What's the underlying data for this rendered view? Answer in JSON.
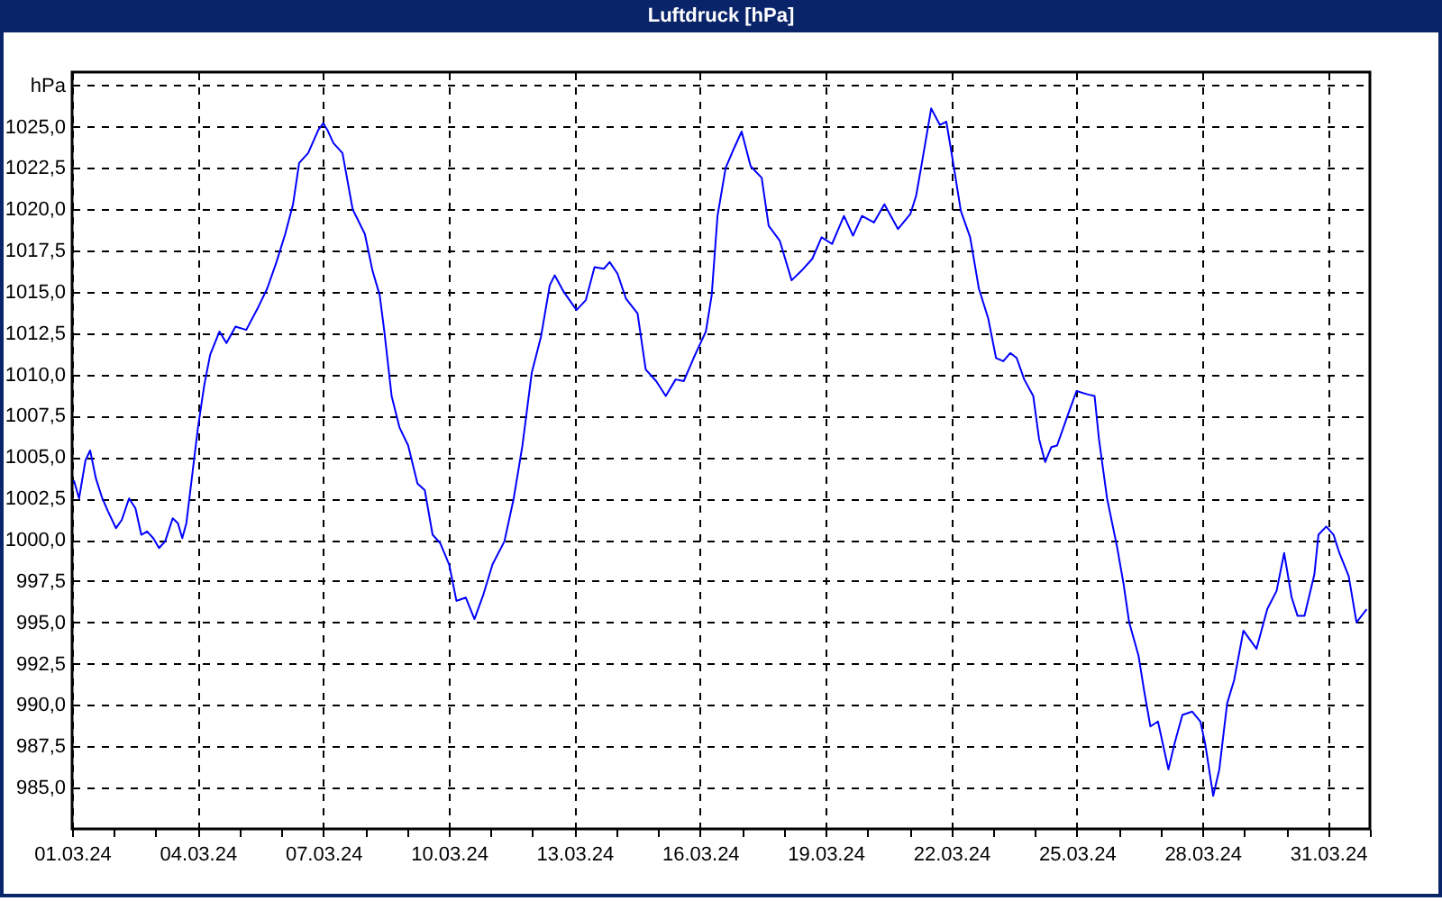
{
  "chart_data": {
    "type": "line",
    "title": "Luftdruck [hPa]",
    "x": [
      "--03-01T01:00",
      "--03-01T04:00",
      "--03-01T07:40",
      "--03-01T10:20",
      "--03-01T13:40",
      "--03-01T17:20",
      "--03-01T20:40",
      "--03-02T01:10",
      "--03-02T04:30",
      "--03-02T08:40",
      "--03-02T12:20",
      "--03-02T15:40",
      "--03-02T19:00",
      "--03-02T22:30",
      "--03-03T01:50",
      "--03-03T05:20",
      "--03-03T09:40",
      "--03-03T12:40",
      "--03-03T15:10",
      "--03-03T17:30",
      "--03-03T20:50",
      "--03-04T00:10",
      "--03-04T03:50",
      "--03-04T07:10",
      "--03-04T12:30",
      "--03-04T16:30",
      "--03-04T21:40",
      "--03-05T03:50",
      "--03-05T10:50",
      "--03-05T15:50",
      "--03-05T21:10",
      "--03-06T02:10",
      "--03-06T06:40",
      "--03-06T10:10",
      "--03-06T15:20",
      "--03-06T21:10",
      "--03-07T00:00",
      "--03-07T02:20",
      "--03-07T05:50",
      "--03-07T11:00",
      "--03-07T16:50",
      "--03-07T23:50",
      "--03-08T04:10",
      "--03-08T08:20",
      "--03-08T11:00",
      "--03-08T15:10",
      "--03-08T19:40",
      "--03-09T00:40",
      "--03-09T06:00",
      "--03-09T10:10",
      "--03-09T14:40",
      "--03-09T19:00",
      "--03-10T00:10",
      "--03-10T04:20",
      "--03-10T09:40",
      "--03-10T14:40",
      "--03-10T19:50",
      "--03-11T01:00",
      "--03-11T07:50",
      "--03-11T13:10",
      "--03-11T18:10",
      "--03-11T23:30",
      "--03-12T04:50",
      "--03-12T09:50",
      "--03-12T12:40",
      "--03-12T17:50",
      "--03-13T01:10",
      "--03-13T06:30",
      "--03-13T11:30",
      "--03-13T16:50",
      "--03-13T20:10",
      "--03-14T00:40",
      "--03-14T05:30",
      "--03-14T12:10",
      "--03-14T16:50",
      "--03-14T22:50",
      "--03-15T04:20",
      "--03-15T10:00",
      "--03-15T14:40",
      "--03-15T20:20",
      "--03-16T03:20",
      "--03-16T06:40",
      "--03-16T10:00",
      "--03-16T14:40",
      "--03-16T18:40",
      "--03-16T23:50",
      "--03-17T05:00",
      "--03-17T11:20",
      "--03-17T15:20",
      "--03-17T21:40",
      "--03-18T04:30",
      "--03-18T10:20",
      "--03-18T16:20",
      "--03-18T21:40",
      "--03-19T03:40",
      "--03-19T10:30",
      "--03-19T15:40",
      "--03-19T20:50",
      "--03-20T03:40",
      "--03-20T09:40",
      "--03-20T17:30",
      "--03-21T00:30",
      "--03-21T03:50",
      "--03-21T07:10",
      "--03-21T12:30",
      "--03-21T17:30",
      "--03-21T21:10",
      "--03-22T00:30",
      "--03-22T05:30",
      "--03-22T10:50",
      "--03-22T15:50",
      "--03-22T21:10",
      "--03-23T01:40",
      "--03-23T05:50",
      "--03-23T09:50",
      "--03-23T13:30",
      "--03-23T17:50",
      "--03-23T23:00",
      "--03-24T02:20",
      "--03-24T05:50",
      "--03-24T09:20",
      "--03-24T12:40",
      "--03-24T19:00",
      "--03-24T23:50",
      "--03-25T06:00",
      "--03-25T10:10",
      "--03-25T12:40",
      "--03-25T17:20",
      "--03-25T23:00",
      "--03-26T02:40",
      "--03-26T06:00",
      "--03-26T11:20",
      "--03-26T14:40",
      "--03-26T18:10",
      "--03-26T22:30",
      "--03-27T04:30",
      "--03-27T07:50",
      "--03-27T12:30",
      "--03-27T18:10",
      "--03-27T22:50",
      "--03-28T01:40",
      "--03-28T06:10",
      "--03-28T09:40",
      "--03-28T14:10",
      "--03-28T18:10",
      "--03-28T23:30",
      "--03-29T07:00",
      "--03-29T13:10",
      "--03-29T18:30",
      "--03-29T22:50",
      "--03-30T03:10",
      "--03-30T06:30",
      "--03-30T10:30",
      "--03-30T16:10",
      "--03-30T18:30",
      "--03-30T23:00",
      "--03-31T03:10",
      "--03-31T06:30",
      "--03-31T11:50",
      "--03-31T16:20",
      "--03-31T22:10"
    ],
    "series": [
      {
        "color": "#0000ff",
        "values": [
          1003.6,
          1002.5,
          1004.8,
          1005.4,
          1003.7,
          1002.5,
          1001.7,
          1000.7,
          1001.2,
          1002.5,
          1001.9,
          1000.3,
          1000.5,
          1000.1,
          999.5,
          999.9,
          1001.3,
          1001.0,
          1000.1,
          1001.0,
          1003.9,
          1006.8,
          1009.4,
          1011.2,
          1012.6,
          1011.9,
          1012.9,
          1012.7,
          1014.1,
          1015.2,
          1016.8,
          1018.5,
          1020.3,
          1022.8,
          1023.4,
          1024.8,
          1025.2,
          1024.8,
          1024.0,
          1023.4,
          1020.0,
          1018.5,
          1016.3,
          1014.8,
          1012.6,
          1008.7,
          1006.8,
          1005.7,
          1003.4,
          1003.0,
          1000.3,
          999.8,
          998.5,
          996.3,
          996.5,
          995.2,
          996.7,
          998.5,
          999.9,
          1002.5,
          1005.7,
          1010.1,
          1012.3,
          1015.4,
          1016.0,
          1015.0,
          1013.9,
          1014.5,
          1016.5,
          1016.4,
          1016.8,
          1016.1,
          1014.6,
          1013.7,
          1010.3,
          1009.6,
          1008.7,
          1009.7,
          1009.6,
          1011.0,
          1012.6,
          1014.8,
          1019.6,
          1022.5,
          1023.5,
          1024.7,
          1022.6,
          1021.9,
          1019.0,
          1018.1,
          1015.7,
          1016.3,
          1017.0,
          1018.3,
          1017.9,
          1019.6,
          1018.4,
          1019.6,
          1019.2,
          1020.3,
          1018.8,
          1019.7,
          1020.8,
          1022.8,
          1026.1,
          1025.1,
          1025.3,
          1023.2,
          1019.9,
          1018.3,
          1015.2,
          1013.4,
          1011.0,
          1010.8,
          1011.3,
          1011.0,
          1009.7,
          1008.7,
          1006.1,
          1004.7,
          1005.6,
          1005.7,
          1007.6,
          1009.0,
          1008.8,
          1008.7,
          1006.1,
          1002.5,
          999.6,
          997.4,
          995.0,
          993.0,
          990.8,
          988.7,
          989.0,
          986.1,
          987.6,
          989.4,
          989.6,
          989.0,
          987.6,
          984.5,
          986.1,
          990.1,
          991.5,
          994.5,
          993.4,
          995.8,
          996.9,
          999.2,
          996.5,
          995.4,
          995.4,
          997.9,
          1000.3,
          1000.8,
          1000.3,
          999.2,
          997.8,
          995.0,
          995.8
        ]
      }
    ],
    "xlim": [
      "--03-01",
      "--04-01"
    ],
    "xticks": [
      {
        "value": "--03-01",
        "label": "01.03.24"
      },
      {
        "value": "--03-02",
        "label": null
      },
      {
        "value": "--03-03",
        "label": null
      },
      {
        "value": "--03-04",
        "label": "04.03.24"
      },
      {
        "value": "--03-05",
        "label": null
      },
      {
        "value": "--03-06",
        "label": null
      },
      {
        "value": "--03-07",
        "label": "07.03.24"
      },
      {
        "value": "--03-08",
        "label": null
      },
      {
        "value": "--03-09",
        "label": null
      },
      {
        "value": "--03-10",
        "label": "10.03.24"
      },
      {
        "value": "--03-11",
        "label": null
      },
      {
        "value": "--03-12",
        "label": null
      },
      {
        "value": "--03-13",
        "label": "13.03.24"
      },
      {
        "value": "--03-14",
        "label": null
      },
      {
        "value": "--03-15",
        "label": null
      },
      {
        "value": "--03-16",
        "label": "16.03.24"
      },
      {
        "value": "--03-17",
        "label": null
      },
      {
        "value": "--03-18",
        "label": null
      },
      {
        "value": "--03-19",
        "label": "19.03.24"
      },
      {
        "value": "--03-20",
        "label": null
      },
      {
        "value": "--03-21",
        "label": null
      },
      {
        "value": "--03-22",
        "label": "22.03.24"
      },
      {
        "value": "--03-23",
        "label": null
      },
      {
        "value": "--03-24",
        "label": null
      },
      {
        "value": "--03-25",
        "label": "25.03.24"
      },
      {
        "value": "--03-26",
        "label": null
      },
      {
        "value": "--03-27",
        "label": null
      },
      {
        "value": "--03-28",
        "label": "28.03.24"
      },
      {
        "value": "--03-29",
        "label": null
      },
      {
        "value": "--03-30",
        "label": null
      },
      {
        "value": "--03-31",
        "label": "31.03.24"
      },
      {
        "value": "--04-01",
        "label": null
      }
    ],
    "ylim": [
      982.5,
      1028.3
    ],
    "yticks": [
      {
        "value": 985,
        "label": "985,0"
      },
      {
        "value": 987.5,
        "label": "987,5"
      },
      {
        "value": 990,
        "label": "990,0"
      },
      {
        "value": 992.5,
        "label": "992,5"
      },
      {
        "value": 995,
        "label": "995,0"
      },
      {
        "value": 997.5,
        "label": "997,5"
      },
      {
        "value": 1000,
        "label": "1000,0"
      },
      {
        "value": 1002.5,
        "label": "1002,5"
      },
      {
        "value": 1005,
        "label": "1005,0"
      },
      {
        "value": 1007.5,
        "label": "1007,5"
      },
      {
        "value": 1010,
        "label": "1010,0"
      },
      {
        "value": 1012.5,
        "label": "1012,5"
      },
      {
        "value": 1015,
        "label": "1015,0"
      },
      {
        "value": 1017.5,
        "label": "1017,5"
      },
      {
        "value": 1020,
        "label": "1020,0"
      },
      {
        "value": 1022.5,
        "label": "1022,5"
      },
      {
        "value": 1025,
        "label": "1025,0"
      },
      {
        "value": 1027.5,
        "label": "hPa"
      }
    ],
    "grid": true
  }
}
